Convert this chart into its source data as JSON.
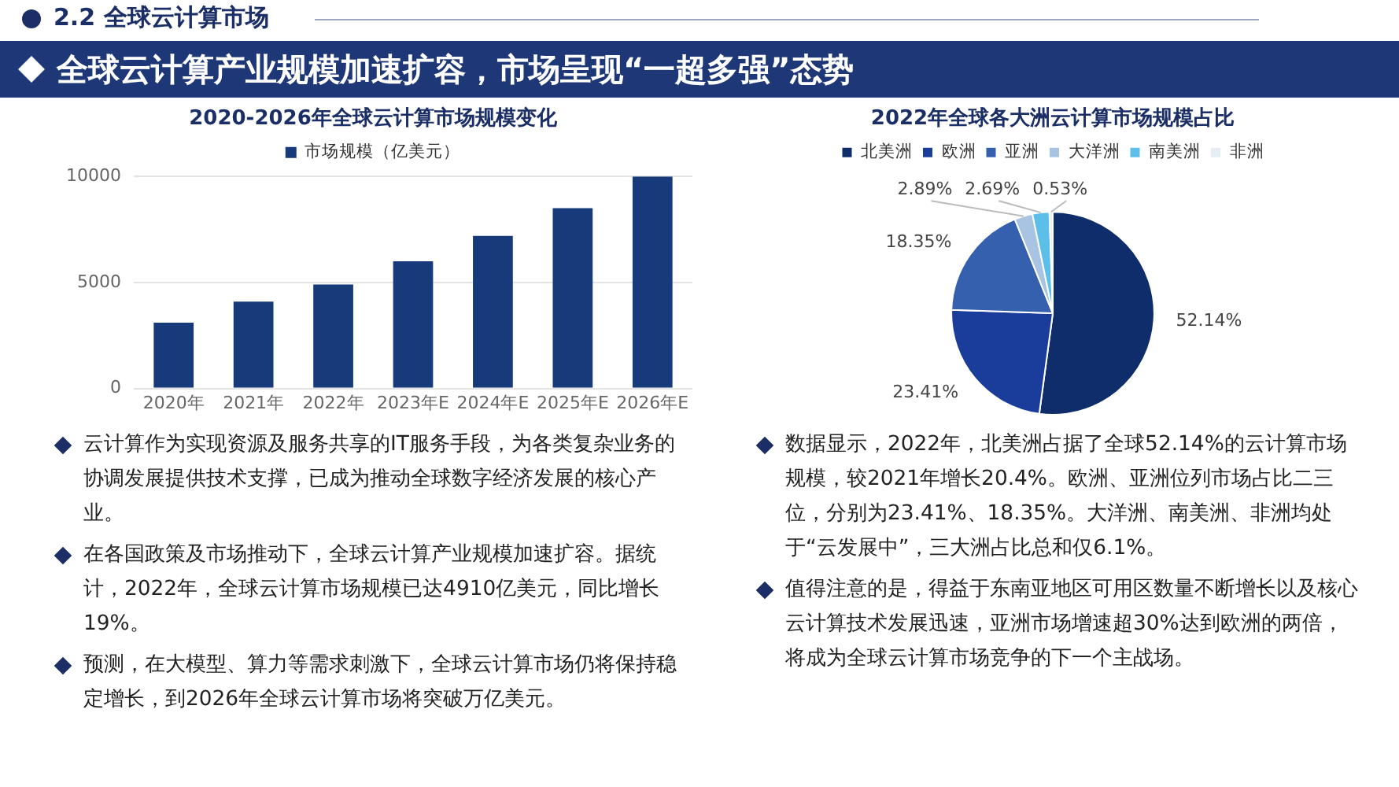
{
  "chart_data": [
    {
      "type": "other",
      "subtitle": "2.2 全球云计算市场",
      "title": "全球云计算产业规模加速扩容，市场呈现“一超多强”态势"
    },
    {
      "type": "bar",
      "title": "2020-2026年全球云计算市场规模变化",
      "categories": [
        "2020年",
        "2021年",
        "2022年",
        "2023年E",
        "2024年E",
        "2025年E",
        "2026年E"
      ],
      "series": [
        {
          "name": "市场规模（亿美元）",
          "color": "#173a7a",
          "values": [
            3100,
            4100,
            4900,
            6000,
            7200,
            8500,
            10000
          ]
        }
      ],
      "ylim": [
        0,
        10000
      ],
      "yticks": [
        0,
        5000,
        10000
      ],
      "grid": "y",
      "legend": "top"
    },
    {
      "type": "pie",
      "title": "2022年全球各大洲云计算市场规模占比",
      "categories": [
        "北美洲",
        "欧洲",
        "亚洲",
        "大洋洲",
        "南美洲",
        "非洲"
      ],
      "values": [
        52.14,
        23.41,
        18.35,
        2.89,
        2.69,
        0.53
      ],
      "colors": [
        "#0f2d6b",
        "#1a3c9a",
        "#3560ae",
        "#a9c3e2",
        "#5bbfea",
        "#e6edf5"
      ],
      "value_labels": [
        "52.14%",
        "23.41%",
        "18.35%",
        "2.89%",
        "2.69%",
        "0.53%"
      ],
      "legend": "top"
    },
    {
      "type": "other",
      "annotations": [
        "云计算作为实现资源及服务共享的IT服务手段，为各类复杂业务的协调发展提供技术支撑，已成为推动全球数字经济发展的核心产业。",
        "在各国政策及市场推动下，全球云计算产业规模加速扩容。据统计，2022年，全球云计算市场规模已达4910亿美元，同比增长19%。",
        "预测，在大模型、算力等需求刺激下，全球云计算市场仍将保持稳定增长，到2026年全球云计算市场将突破万亿美元。",
        "数据显示，2022年，北美洲占据了全球52.14%的云计算市场规模，较2021年增长20.4%。欧洲、亚洲位列市场占比二三位，分别为23.41%、18.35%。大洋洲、南美洲、非洲均处于“云发展中”，三大洲占比总和仅6.1%。",
        "值得注意的是，得益于东南亚地区可用区数量不断增长以及核心云计算技术发展迅速，亚洲市场增速超30%达到欧洲的两倍，将成为全球云计算市场竞争的下一个主战场。"
      ]
    }
  ]
}
